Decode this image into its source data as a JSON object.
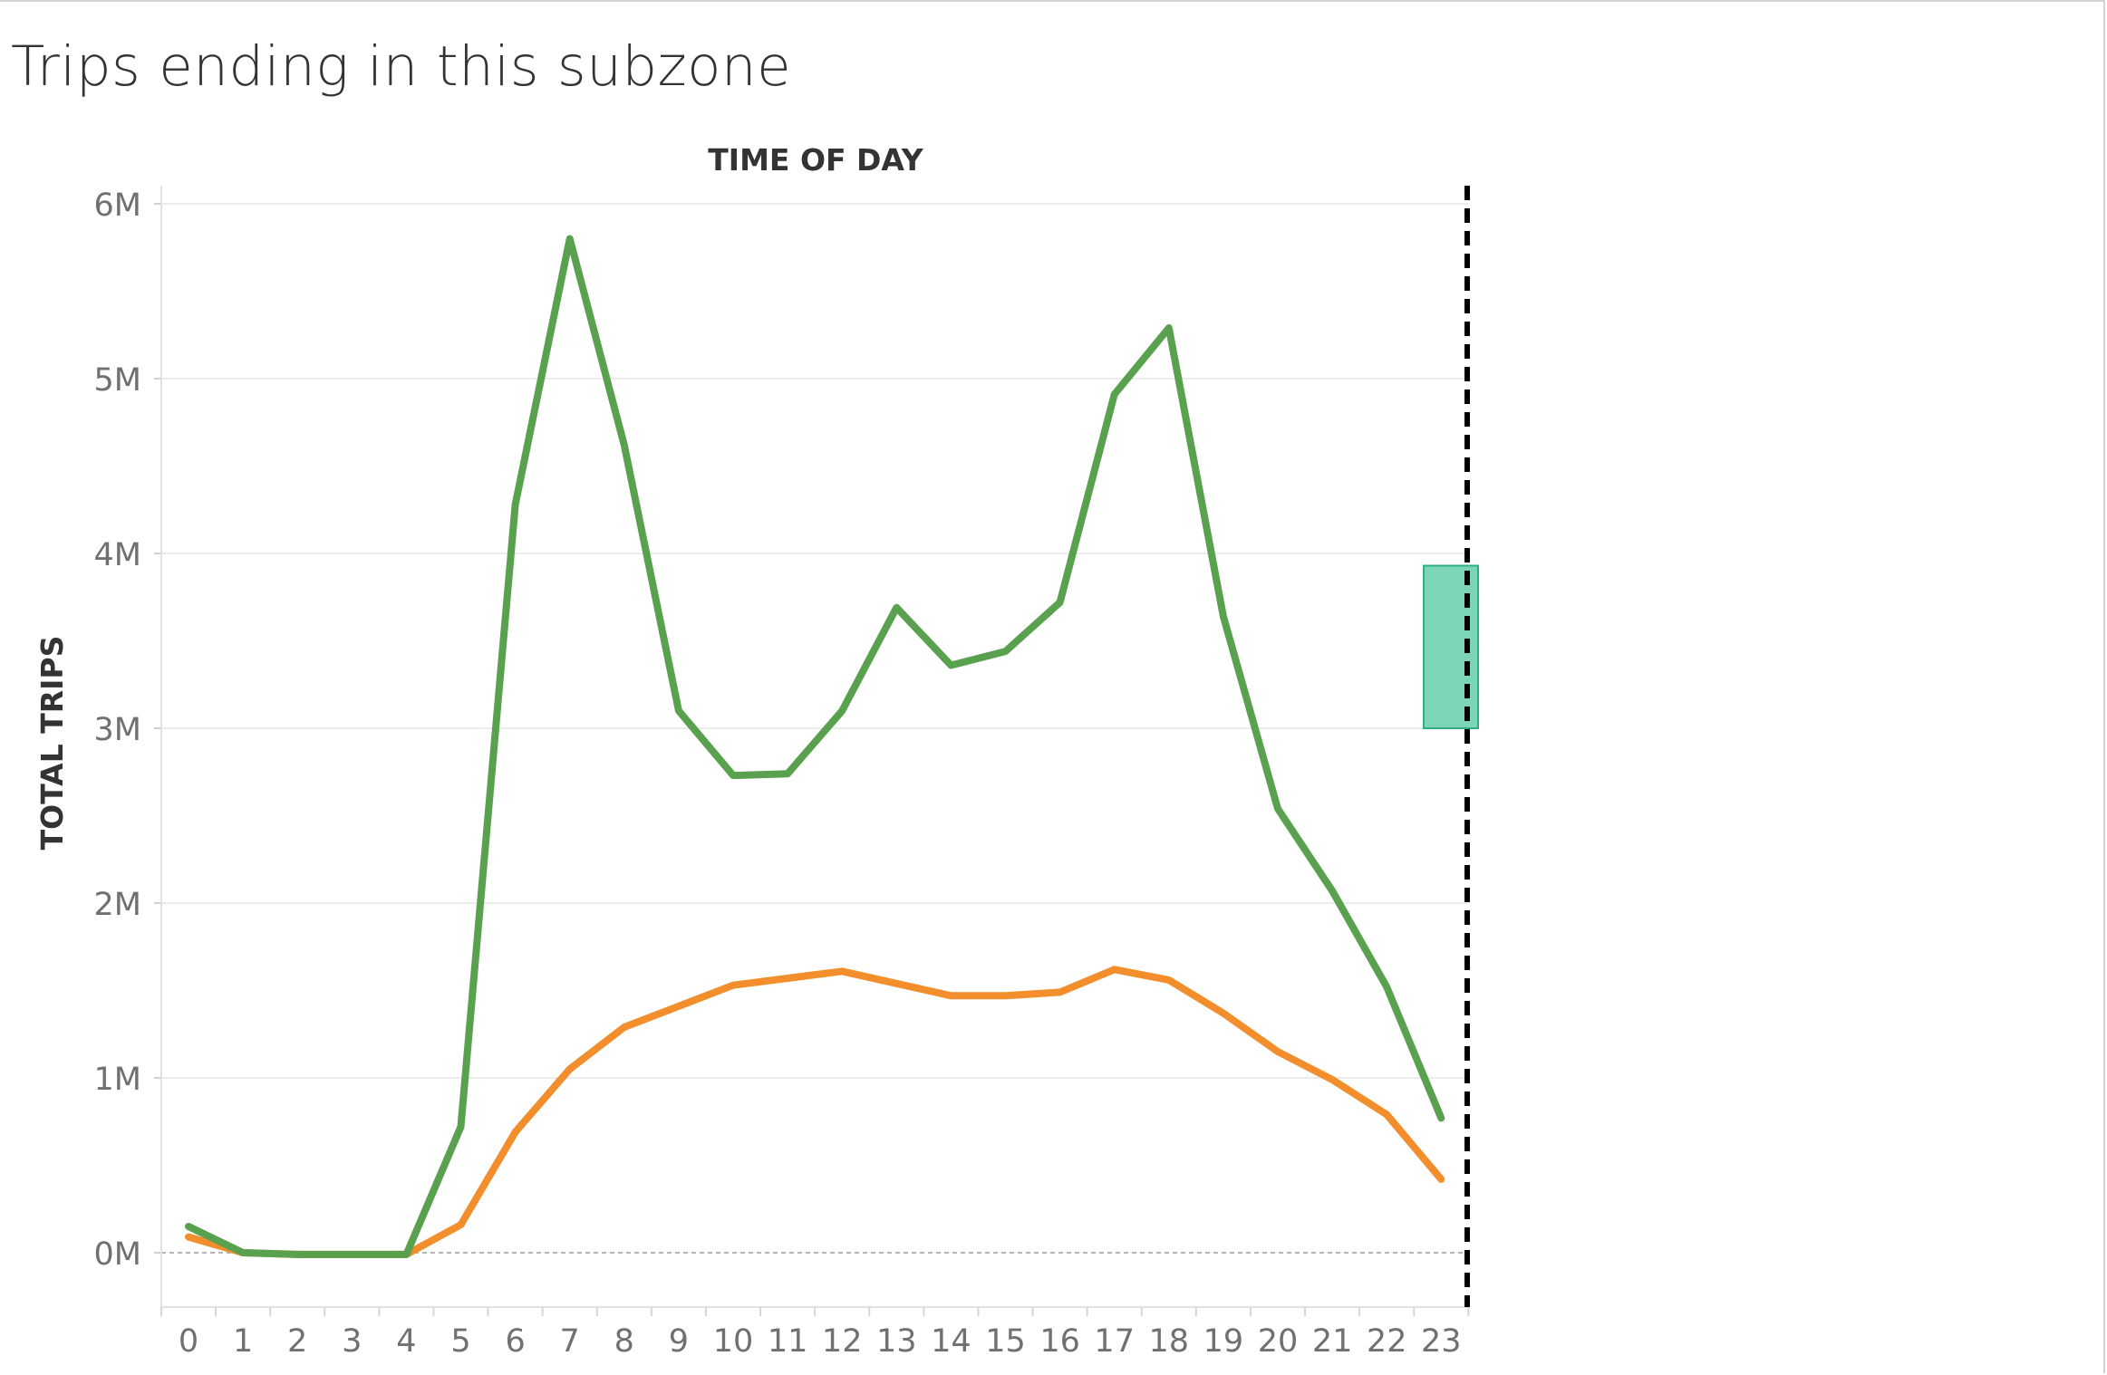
{
  "title": "Trips ending in this subzone",
  "chart_data": {
    "type": "line",
    "xlabel": "TIME OF DAY",
    "ylabel": "TOTAL TRIPS",
    "categories": [
      "0",
      "1",
      "2",
      "3",
      "4",
      "5",
      "6",
      "7",
      "8",
      "9",
      "10",
      "11",
      "12",
      "13",
      "14",
      "15",
      "16",
      "17",
      "18",
      "19",
      "20",
      "21",
      "22",
      "23"
    ],
    "yticks": [
      {
        "value": 0,
        "label": "0M"
      },
      {
        "value": 1000000,
        "label": "1M"
      },
      {
        "value": 2000000,
        "label": "2M"
      },
      {
        "value": 3000000,
        "label": "3M"
      },
      {
        "value": 4000000,
        "label": "4M"
      },
      {
        "value": 5000000,
        "label": "5M"
      },
      {
        "value": 6000000,
        "label": "6M"
      }
    ],
    "ylim": [
      -310000,
      6000000
    ],
    "grid": true,
    "series": [
      {
        "color": "#59a14f",
        "values": [
          150000,
          0,
          -10000,
          -10000,
          -10000,
          720000,
          4280000,
          5800000,
          4620000,
          3100000,
          2730000,
          2740000,
          3100000,
          3690000,
          3360000,
          3440000,
          3720000,
          4910000,
          5290000,
          3640000,
          2540000,
          2070000,
          1520000,
          770000
        ]
      },
      {
        "color": "#f28e2b",
        "values": [
          90000,
          0,
          -10000,
          -10000,
          -10000,
          160000,
          690000,
          1050000,
          1290000,
          1410000,
          1530000,
          1570000,
          1610000,
          1540000,
          1470000,
          1470000,
          1490000,
          1620000,
          1560000,
          1370000,
          1150000,
          990000,
          790000,
          420000
        ]
      }
    ],
    "reference_line": {
      "x": 23.5,
      "style": "dashed",
      "color": "#000000"
    },
    "band": {
      "y_from": 3000000,
      "y_to": 3930000,
      "color": "#5ccaa8"
    }
  }
}
